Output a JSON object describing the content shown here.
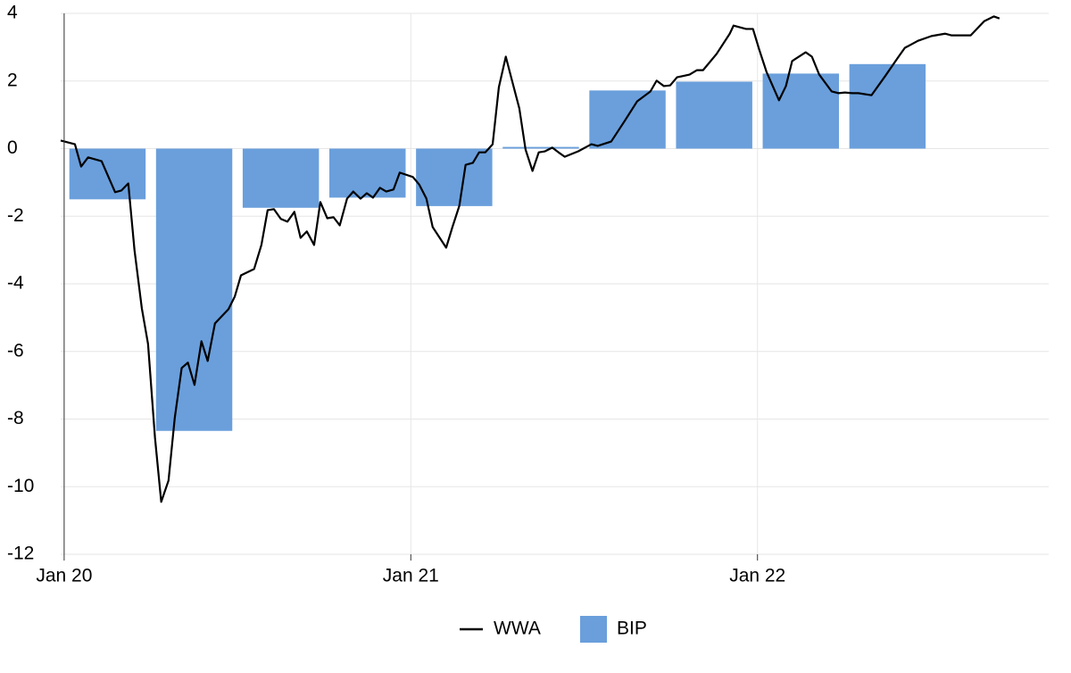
{
  "chart_data": {
    "type": "combo",
    "xlim": [
      2019.99,
      2022.84
    ],
    "xticks": [
      {
        "value": 2020,
        "label": "Jan 20"
      },
      {
        "value": 2021,
        "label": "Jan 21"
      },
      {
        "value": 2022,
        "label": "Jan 22"
      }
    ],
    "ylim": [
      -12,
      4
    ],
    "yticks": [
      -12,
      -10,
      -8,
      -6,
      -4,
      -2,
      0,
      2,
      4
    ],
    "grid": true,
    "legend": "bottom",
    "series": [
      {
        "name": "WWA",
        "type": "line",
        "color": "#000000",
        "x": [
          2019.99,
          2020.031,
          2020.049,
          2020.069,
          2020.108,
          2020.147,
          2020.165,
          2020.185,
          2020.203,
          2020.224,
          2020.242,
          2020.262,
          2020.28,
          2020.301,
          2020.319,
          2020.339,
          2020.357,
          2020.376,
          2020.396,
          2020.414,
          2020.435,
          2020.474,
          2020.492,
          2020.51,
          2020.548,
          2020.569,
          2020.587,
          2020.605,
          2020.625,
          2020.644,
          2020.664,
          2020.682,
          2020.7,
          2020.721,
          2020.739,
          2020.759,
          2020.777,
          2020.795,
          2020.816,
          2020.834,
          2020.855,
          2020.873,
          2020.891,
          2020.911,
          2020.929,
          2020.95,
          2020.968,
          2021.006,
          2021.024,
          2021.045,
          2021.063,
          2021.102,
          2021.12,
          2021.14,
          2021.158,
          2021.179,
          2021.197,
          2021.215,
          2021.236,
          2021.254,
          2021.274,
          2021.292,
          2021.313,
          2021.331,
          2021.351,
          2021.369,
          2021.387,
          2021.408,
          2021.426,
          2021.444,
          2021.483,
          2021.521,
          2021.539,
          2021.578,
          2021.617,
          2021.653,
          2021.691,
          2021.709,
          2021.73,
          2021.748,
          2021.768,
          2021.804,
          2021.825,
          2021.843,
          2021.882,
          2021.92,
          2021.931,
          2021.967,
          2021.987,
          2022.005,
          2022.026,
          2022.062,
          2022.082,
          2022.1,
          2022.139,
          2022.157,
          2022.178,
          2022.214,
          2022.234,
          2022.252,
          2022.273,
          2022.291,
          2022.329,
          2022.368,
          2022.407,
          2022.425,
          2022.463,
          2022.502,
          2022.541,
          2022.559,
          2022.597,
          2022.615,
          2022.654,
          2022.682,
          2022.698
        ],
        "values": [
          0.24,
          0.13,
          -0.53,
          -0.26,
          -0.37,
          -1.29,
          -1.24,
          -1.03,
          -3.01,
          -4.72,
          -5.78,
          -8.55,
          -10.45,
          -9.82,
          -7.97,
          -6.49,
          -6.33,
          -6.99,
          -5.7,
          -6.28,
          -5.17,
          -4.75,
          -4.38,
          -3.75,
          -3.56,
          -2.85,
          -1.82,
          -1.79,
          -2.08,
          -2.16,
          -1.87,
          -2.64,
          -2.45,
          -2.85,
          -1.58,
          -2.06,
          -2.03,
          -2.27,
          -1.48,
          -1.27,
          -1.48,
          -1.32,
          -1.45,
          -1.16,
          -1.27,
          -1.21,
          -0.71,
          -0.84,
          -1.06,
          -1.48,
          -2.32,
          -2.93,
          -2.32,
          -1.69,
          -0.48,
          -0.42,
          -0.11,
          -0.11,
          0.13,
          1.82,
          2.72,
          2.01,
          1.19,
          -0.03,
          -0.66,
          -0.11,
          -0.08,
          0.03,
          -0.11,
          -0.24,
          -0.08,
          0.13,
          0.08,
          0.21,
          0.82,
          1.4,
          1.69,
          2.01,
          1.85,
          1.87,
          2.11,
          2.19,
          2.32,
          2.32,
          2.8,
          3.4,
          3.64,
          3.54,
          3.54,
          2.93,
          2.27,
          1.43,
          1.85,
          2.59,
          2.85,
          2.72,
          2.19,
          1.69,
          1.64,
          1.66,
          1.64,
          1.64,
          1.58,
          2.14,
          2.72,
          2.98,
          3.19,
          3.33,
          3.4,
          3.35,
          3.35,
          3.35,
          3.77,
          3.91,
          3.85
        ]
      },
      {
        "name": "BIP",
        "type": "bar",
        "color": "#6a9fdc",
        "x": [
          2020.125,
          2020.375,
          2020.625,
          2020.875,
          2021.125,
          2021.375,
          2021.625,
          2021.875,
          2022.125,
          2022.375
        ],
        "values": [
          -1.5,
          -8.35,
          -1.75,
          -1.45,
          -1.7,
          0.05,
          1.72,
          1.98,
          2.22,
          2.5
        ]
      }
    ]
  }
}
